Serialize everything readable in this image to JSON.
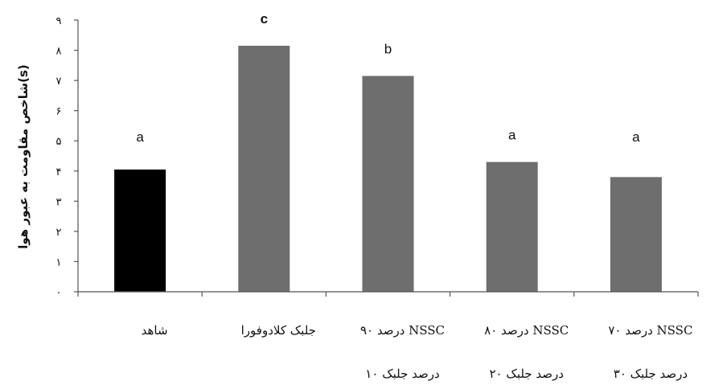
{
  "chart_data": {
    "type": "bar",
    "ylabel": "شاخص مقاومت به عبور هوا(s)",
    "ylim": [
      0,
      9
    ],
    "yticks": [
      "۰",
      "۱",
      "۲",
      "۳",
      "۴",
      "۵",
      "۶",
      "۷",
      "۸",
      "۹"
    ],
    "grid": false,
    "categories": [
      {
        "line1": "شاهد",
        "line2": ""
      },
      {
        "line1": "جلبک کلادوفورا",
        "line2": ""
      },
      {
        "line1": "۹۰ درصد NSSC",
        "line2": "۱۰ درصد جلبک"
      },
      {
        "line1": "۸۰ درصد NSSC",
        "line2": "۲۰ درصد جلبک"
      },
      {
        "line1": "۷۰ درصد NSSC",
        "line2": "۳۰ درصد جلبک"
      }
    ],
    "values": [
      4.05,
      8.15,
      7.15,
      4.3,
      3.8
    ],
    "significance": [
      "a",
      "c",
      "b",
      "a",
      "a"
    ],
    "colors": [
      "#000000",
      "#6e6e6e",
      "#6e6e6e",
      "#6e6e6e",
      "#6e6e6e"
    ]
  }
}
